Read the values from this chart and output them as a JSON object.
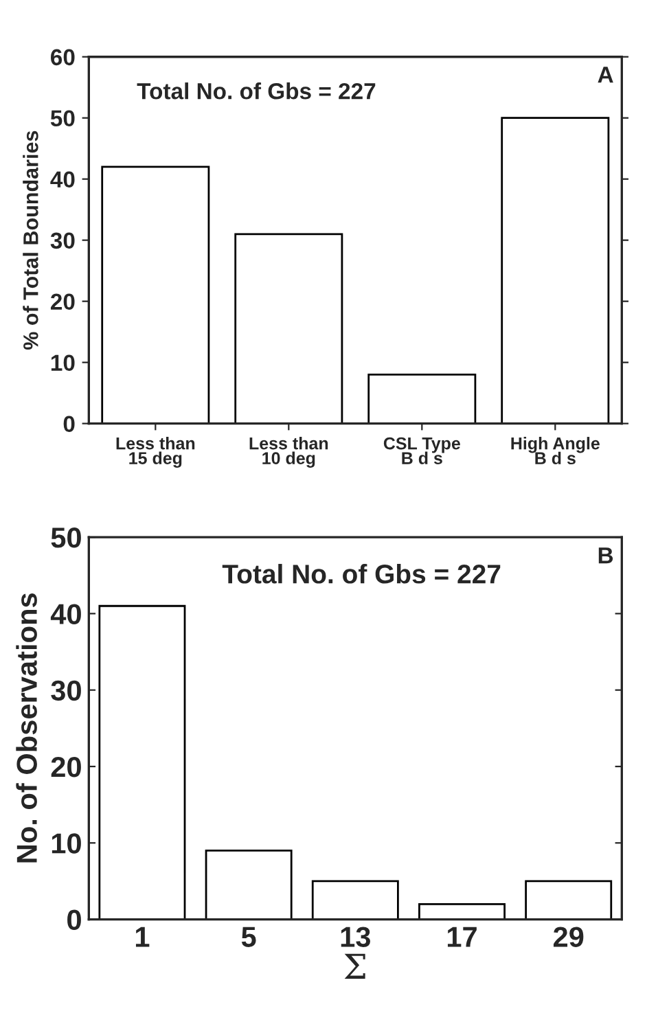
{
  "chart_data": [
    {
      "type": "bar",
      "ylabel": "% of Total Boundaries",
      "categories": [
        "Less than\n15 deg",
        "Less than\n10 deg",
        "CSL Type\nB d s",
        "High Angle\nB d s"
      ],
      "values": [
        42,
        31,
        8,
        50
      ],
      "color": "#ffffff",
      "ylim": [
        0,
        60
      ],
      "yticks": [
        0,
        10,
        20,
        30,
        40,
        50,
        60
      ],
      "grid": false,
      "legend": false,
      "annotations": [
        "Total No. of Gbs = 227",
        "A"
      ]
    },
    {
      "type": "bar",
      "ylabel": "No. of Observations",
      "xlabel": "Σ",
      "categories": [
        "1",
        "5",
        "13",
        "17",
        "29"
      ],
      "values": [
        41,
        9,
        5,
        2,
        5
      ],
      "color": "#ffffff",
      "ylim": [
        0,
        50
      ],
      "yticks": [
        0,
        10,
        20,
        30,
        40,
        50
      ],
      "grid": false,
      "legend": false,
      "annotations": [
        "Total No. of Gbs = 227",
        "B"
      ]
    }
  ]
}
